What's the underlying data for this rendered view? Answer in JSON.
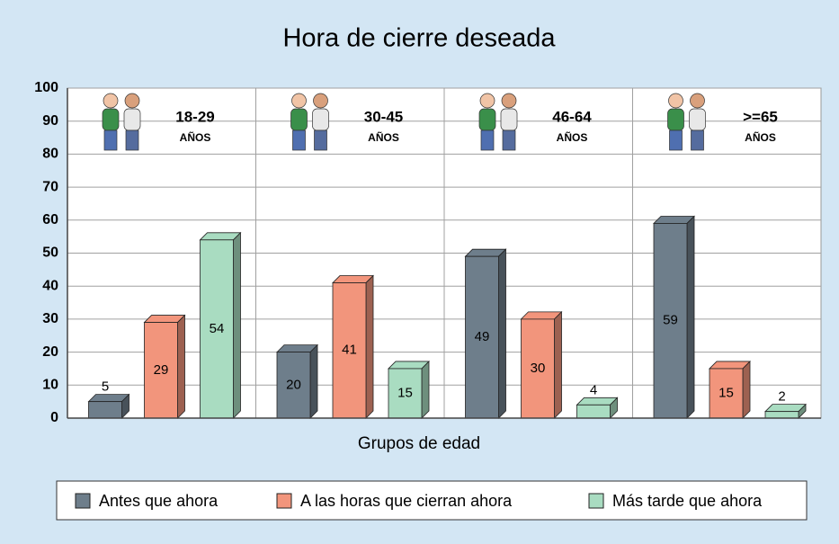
{
  "chart_data": {
    "type": "bar3d",
    "title": "Hora de cierre deseada",
    "x_label": "Grupos de edad",
    "categories": [
      "18-29",
      "30-45",
      "46-64",
      ">=65"
    ],
    "category_unit": "AÑOS",
    "series": [
      {
        "name": "Antes que ahora",
        "color": "#6e7e8b",
        "values": [
          5,
          20,
          49,
          59
        ]
      },
      {
        "name": "A las horas que cierran ahora",
        "color": "#f2957c",
        "values": [
          29,
          41,
          30,
          15
        ]
      },
      {
        "name": "Más tarde que ahora",
        "color": "#a9dcc1",
        "values": [
          54,
          15,
          4,
          2
        ]
      }
    ],
    "ylim": [
      0,
      100
    ],
    "yticks": [
      0,
      10,
      20,
      30,
      40,
      50,
      60,
      70,
      80,
      90,
      100
    ],
    "grid": true,
    "legend": "bottom"
  }
}
